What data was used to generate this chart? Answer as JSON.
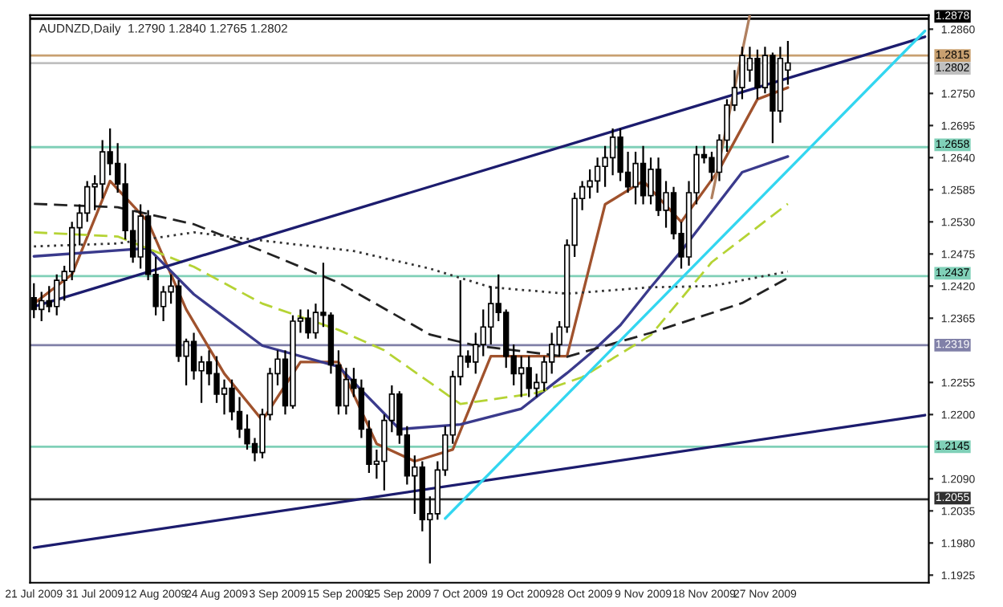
{
  "chart_data": {
    "type": "candlestick",
    "title": "AUDNZD,Daily  1.2790 1.2840 1.2765 1.2802",
    "categories": [
      "21 Jul 2009",
      null,
      null,
      null,
      null,
      null,
      null,
      null,
      "31 Jul 2009",
      null,
      null,
      null,
      null,
      null,
      null,
      null,
      "12 Aug 2009",
      null,
      null,
      null,
      null,
      null,
      null,
      null,
      "24 Aug 2009",
      null,
      null,
      null,
      null,
      null,
      null,
      null,
      "3 Sep 2009",
      null,
      null,
      null,
      null,
      null,
      null,
      null,
      "15 Sep 2009",
      null,
      null,
      null,
      null,
      null,
      null,
      null,
      "25 Sep 2009",
      null,
      null,
      null,
      null,
      null,
      null,
      null,
      "7 Oct 2009",
      null,
      null,
      null,
      null,
      null,
      null,
      null,
      "19 Oct 2009",
      null,
      null,
      null,
      null,
      null,
      null,
      null,
      "28 Oct 2009",
      null,
      null,
      null,
      null,
      null,
      null,
      null,
      "9 Nov 2009",
      null,
      null,
      null,
      null,
      null,
      null,
      null,
      "18 Nov 2009",
      null,
      null,
      null,
      null,
      null,
      null,
      null,
      "27 Nov 2009",
      null,
      null,
      null,
      null,
      null,
      null,
      null,
      null,
      null,
      null,
      null,
      null,
      null,
      null,
      null,
      null,
      null,
      null,
      null,
      null,
      null
    ],
    "ohlc": [
      [
        1.24,
        1.2425,
        1.2365,
        1.238
      ],
      [
        1.238,
        1.241,
        1.236,
        1.2395
      ],
      [
        1.2395,
        1.242,
        1.2375,
        1.2385
      ],
      [
        1.2385,
        1.244,
        1.237,
        1.243
      ],
      [
        1.243,
        1.2455,
        1.2395,
        1.2445
      ],
      [
        1.2445,
        1.253,
        1.243,
        1.252
      ],
      [
        1.252,
        1.256,
        1.249,
        1.2545
      ],
      [
        1.2545,
        1.26,
        1.253,
        1.259
      ],
      [
        1.259,
        1.261,
        1.255,
        1.2595
      ],
      [
        1.2595,
        1.267,
        1.257,
        1.265
      ],
      [
        1.265,
        1.269,
        1.261,
        1.263
      ],
      [
        1.263,
        1.2665,
        1.258,
        1.2595
      ],
      [
        1.2595,
        1.263,
        1.25,
        1.2515
      ],
      [
        1.2515,
        1.255,
        1.246,
        1.247
      ],
      [
        1.247,
        1.256,
        1.245,
        1.254
      ],
      [
        1.254,
        1.255,
        1.243,
        1.244
      ],
      [
        1.244,
        1.247,
        1.237,
        1.2385
      ],
      [
        1.2385,
        1.242,
        1.236,
        1.241
      ],
      [
        1.241,
        1.244,
        1.239,
        1.242
      ],
      [
        1.242,
        1.243,
        1.229,
        1.23
      ],
      [
        1.23,
        1.233,
        1.225,
        1.2325
      ],
      [
        1.2325,
        1.234,
        1.226,
        1.2275
      ],
      [
        1.2275,
        1.23,
        1.222,
        1.229
      ],
      [
        1.229,
        1.231,
        1.225,
        1.227
      ],
      [
        1.227,
        1.23,
        1.222,
        1.2235
      ],
      [
        1.2235,
        1.226,
        1.22,
        1.2245
      ],
      [
        1.2245,
        1.226,
        1.219,
        1.2205
      ],
      [
        1.2205,
        1.223,
        1.216,
        1.2175
      ],
      [
        1.2175,
        1.22,
        1.214,
        1.215
      ],
      [
        1.215,
        1.216,
        1.212,
        1.2135
      ],
      [
        1.2135,
        1.221,
        1.2125,
        1.22
      ],
      [
        1.22,
        1.228,
        1.219,
        1.227
      ],
      [
        1.227,
        1.231,
        1.225,
        1.2295
      ],
      [
        1.2295,
        1.231,
        1.22,
        1.2215
      ],
      [
        1.2215,
        1.237,
        1.221,
        1.236
      ],
      [
        1.236,
        1.238,
        1.234,
        1.2365
      ],
      [
        1.2365,
        1.238,
        1.233,
        1.234
      ],
      [
        1.234,
        1.239,
        1.233,
        1.2375
      ],
      [
        1.2375,
        1.246,
        1.235,
        1.237
      ],
      [
        1.237,
        1.2375,
        1.227,
        1.2285
      ],
      [
        1.2285,
        1.231,
        1.22,
        1.2215
      ],
      [
        1.2215,
        1.228,
        1.22,
        1.226
      ],
      [
        1.226,
        1.228,
        1.223,
        1.2245
      ],
      [
        1.2245,
        1.226,
        1.216,
        1.2175
      ],
      [
        1.2175,
        1.219,
        1.21,
        1.2115
      ],
      [
        1.2115,
        1.214,
        1.209,
        1.212
      ],
      [
        1.212,
        1.22,
        1.207,
        1.219
      ],
      [
        1.219,
        1.225,
        1.217,
        1.2235
      ],
      [
        1.2235,
        1.224,
        1.215,
        1.2165
      ],
      [
        1.2165,
        1.218,
        1.208,
        1.2095
      ],
      [
        1.2095,
        1.213,
        1.203,
        1.211
      ],
      [
        1.211,
        1.212,
        1.2,
        1.202
      ],
      [
        1.202,
        1.206,
        1.1945,
        1.203
      ],
      [
        1.203,
        1.212,
        1.202,
        1.2105
      ],
      [
        1.2105,
        1.218,
        1.2095,
        1.2165
      ],
      [
        1.2165,
        1.2275,
        1.215,
        1.2265
      ],
      [
        1.2265,
        1.243,
        1.225,
        1.23
      ],
      [
        1.23,
        1.231,
        1.228,
        1.229
      ],
      [
        1.229,
        1.234,
        1.227,
        1.232
      ],
      [
        1.232,
        1.238,
        1.23,
        1.235
      ],
      [
        1.235,
        1.242,
        1.232,
        1.239
      ],
      [
        1.239,
        1.244,
        1.236,
        1.2375
      ],
      [
        1.2375,
        1.238,
        1.228,
        1.23
      ],
      [
        1.23,
        1.232,
        1.225,
        1.227
      ],
      [
        1.227,
        1.23,
        1.223,
        1.228
      ],
      [
        1.228,
        1.23,
        1.223,
        1.2245
      ],
      [
        1.2245,
        1.227,
        1.223,
        1.2255
      ],
      [
        1.2255,
        1.23,
        1.224,
        1.229
      ],
      [
        1.229,
        1.234,
        1.227,
        1.232
      ],
      [
        1.232,
        1.236,
        1.23,
        1.235
      ],
      [
        1.235,
        1.25,
        1.234,
        1.249
      ],
      [
        1.249,
        1.258,
        1.247,
        1.257
      ],
      [
        1.257,
        1.26,
        1.255,
        1.259
      ],
      [
        1.259,
        1.262,
        1.257,
        1.26
      ],
      [
        1.26,
        1.264,
        1.258,
        1.2625
      ],
      [
        1.2625,
        1.266,
        1.259,
        1.264
      ],
      [
        1.264,
        1.269,
        1.261,
        1.2675
      ],
      [
        1.2675,
        1.269,
        1.26,
        1.2615
      ],
      [
        1.2615,
        1.265,
        1.258,
        1.259
      ],
      [
        1.259,
        1.265,
        1.256,
        1.263
      ],
      [
        1.263,
        1.266,
        1.256,
        1.2575
      ],
      [
        1.2575,
        1.264,
        1.256,
        1.262
      ],
      [
        1.262,
        1.264,
        1.254,
        1.255
      ],
      [
        1.255,
        1.26,
        1.252,
        1.258
      ],
      [
        1.258,
        1.259,
        1.25,
        1.251
      ],
      [
        1.251,
        1.253,
        1.245,
        1.247
      ],
      [
        1.247,
        1.26,
        1.2455,
        1.258
      ],
      [
        1.258,
        1.266,
        1.256,
        1.2645
      ],
      [
        1.2645,
        1.266,
        1.263,
        1.264
      ],
      [
        1.264,
        1.265,
        1.26,
        1.2615
      ],
      [
        1.2615,
        1.268,
        1.26,
        1.267
      ],
      [
        1.267,
        1.274,
        1.265,
        1.273
      ],
      [
        1.273,
        1.279,
        1.272,
        1.276
      ],
      [
        1.276,
        1.283,
        1.274,
        1.2815
      ],
      [
        1.279,
        1.283,
        1.277,
        1.281
      ],
      [
        1.281,
        1.2825,
        1.274,
        1.276
      ],
      [
        1.276,
        1.283,
        1.275,
        1.2815
      ],
      [
        1.2815,
        1.282,
        1.2665,
        1.272
      ],
      [
        1.272,
        1.283,
        1.27,
        1.281
      ],
      [
        1.279,
        1.284,
        1.2765,
        1.2802
      ],
      null,
      null,
      null,
      null,
      null,
      null,
      null,
      null,
      null,
      null,
      null,
      null,
      null,
      null,
      null,
      null,
      null,
      null
    ],
    "series": [
      {
        "type": "line",
        "color": "#a0522d",
        "values": [
          1.239,
          null,
          null,
          null,
          null,
          1.244,
          null,
          null,
          null,
          null,
          1.26,
          null,
          null,
          null,
          null,
          1.253,
          null,
          null,
          null,
          null,
          1.238,
          null,
          null,
          null,
          null,
          1.227,
          null,
          null,
          null,
          null,
          1.219,
          null,
          null,
          null,
          null,
          1.229,
          null,
          null,
          null,
          null,
          1.229,
          null,
          null,
          null,
          null,
          1.215,
          null,
          null,
          null,
          null,
          1.212,
          null,
          null,
          null,
          null,
          1.214,
          null,
          null,
          null,
          null,
          1.23,
          null,
          null,
          null,
          null,
          1.23,
          null,
          null,
          null,
          null,
          1.23,
          null,
          null,
          null,
          null,
          1.256,
          null,
          null,
          null,
          null,
          1.26,
          null,
          null,
          null,
          null,
          1.253,
          null,
          null,
          null,
          null,
          1.262,
          null,
          null,
          null,
          null,
          1.274,
          null,
          null,
          null,
          1.276,
          null,
          null,
          null,
          null,
          null,
          null,
          null,
          null,
          null,
          null,
          null,
          null,
          null,
          null,
          null,
          null,
          null,
          null
        ]
      },
      {
        "type": "line",
        "color": "#3a3a8c",
        "values": [
          1.2471,
          null,
          null,
          null,
          null,
          null,
          null,
          null,
          null,
          null,
          null,
          null,
          null,
          null,
          null,
          1.2485,
          null,
          null,
          null,
          null,
          null,
          1.2406,
          null,
          null,
          null,
          null,
          null,
          null,
          null,
          null,
          1.2318,
          null,
          null,
          null,
          null,
          null,
          null,
          null,
          null,
          null,
          1.2282,
          null,
          null,
          null,
          null,
          null,
          null,
          null,
          1.2175,
          null,
          null,
          null,
          null,
          null,
          null,
          null,
          1.2183,
          null,
          null,
          null,
          null,
          null,
          null,
          null,
          1.221,
          null,
          null,
          null,
          null,
          null,
          1.2271,
          null,
          null,
          1.2304,
          null,
          null,
          null,
          1.2353,
          null,
          null,
          null,
          1.2418,
          null,
          null,
          null,
          1.248,
          null,
          null,
          null,
          null,
          null,
          null,
          null,
          1.2615,
          null,
          null,
          null,
          null,
          null,
          1.2642,
          null,
          null,
          null,
          null,
          null,
          null,
          null,
          null,
          null,
          null,
          null,
          null,
          null,
          null,
          null,
          null,
          null,
          null
        ]
      },
      {
        "type": "line",
        "color": "#b5d334",
        "line_style": "dashed",
        "values": [
          1.2512,
          null,
          null,
          null,
          null,
          null,
          null,
          null,
          null,
          null,
          null,
          1.2505,
          null,
          null,
          null,
          null,
          null,
          null,
          null,
          null,
          null,
          1.2453,
          null,
          null,
          null,
          null,
          null,
          null,
          null,
          null,
          1.239,
          null,
          null,
          null,
          null,
          null,
          null,
          null,
          null,
          null,
          1.2345,
          null,
          null,
          null,
          null,
          null,
          1.231,
          null,
          null,
          null,
          null,
          null,
          null,
          null,
          null,
          null,
          1.2218,
          null,
          null,
          null,
          null,
          null,
          null,
          null,
          null,
          null,
          1.2237,
          null,
          null,
          null,
          null,
          null,
          1.2264,
          null,
          null,
          null,
          null,
          null,
          null,
          null,
          null,
          1.2336,
          null,
          null,
          null,
          null,
          null,
          null,
          null,
          1.2461,
          null,
          null,
          null,
          null,
          null,
          null,
          null,
          null,
          null,
          1.2561,
          null,
          null,
          null,
          null,
          null,
          null,
          null,
          null,
          null,
          null,
          null,
          null,
          null,
          null,
          null,
          null,
          null,
          null
        ]
      },
      {
        "type": "line",
        "color": "#222222",
        "line_style": "dashed",
        "values": [
          1.2561,
          null,
          null,
          null,
          null,
          null,
          null,
          null,
          null,
          null,
          null,
          1.2555,
          null,
          null,
          null,
          null,
          null,
          null,
          null,
          null,
          null,
          1.2526,
          null,
          null,
          null,
          null,
          null,
          null,
          null,
          null,
          1.248,
          null,
          null,
          null,
          null,
          null,
          null,
          null,
          null,
          null,
          1.2426,
          null,
          null,
          null,
          null,
          null,
          null,
          null,
          null,
          null,
          null,
          null,
          1.2337,
          null,
          null,
          null,
          null,
          null,
          1.2318,
          null,
          null,
          null,
          null,
          null,
          null,
          null,
          null,
          null,
          null,
          null,
          1.2299,
          null,
          null,
          null,
          null,
          null,
          null,
          null,
          null,
          null,
          null,
          1.234,
          null,
          null,
          null,
          null,
          null,
          null,
          null,
          null,
          null,
          null,
          null,
          1.2391,
          null,
          null,
          null,
          null,
          null,
          1.2434,
          null,
          null,
          null,
          null,
          null,
          null,
          null,
          null,
          null,
          null,
          null,
          null,
          null,
          null,
          null,
          null,
          null,
          null
        ]
      },
      {
        "type": "line",
        "color": "#333333",
        "line_style": "dotted",
        "values": [
          1.2488,
          null,
          null,
          null,
          null,
          null,
          null,
          null,
          null,
          null,
          null,
          1.2493,
          null,
          null,
          null,
          null,
          null,
          null,
          null,
          null,
          null,
          1.2512,
          null,
          null,
          null,
          null,
          null,
          null,
          null,
          null,
          1.2498,
          null,
          null,
          null,
          null,
          null,
          null,
          null,
          null,
          null,
          null,
          null,
          1.248,
          null,
          null,
          null,
          null,
          null,
          null,
          null,
          null,
          null,
          1.245,
          null,
          null,
          null,
          null,
          null,
          null,
          null,
          1.2418,
          null,
          null,
          null,
          null,
          null,
          null,
          null,
          null,
          null,
          1.2407,
          null,
          null,
          null,
          null,
          null,
          null,
          null,
          null,
          null,
          null,
          1.2418,
          null,
          null,
          null,
          null,
          null,
          null,
          null,
          1.242,
          null,
          null,
          null,
          null,
          null,
          null,
          null,
          null,
          null,
          1.2445,
          null,
          null,
          null,
          null,
          null,
          null,
          null,
          null,
          null,
          null,
          null,
          null,
          null,
          null,
          null,
          null,
          null,
          null
        ]
      },
      {
        "type": "line",
        "color": "#1c1c6e",
        "values": [
          1.2385,
          null,
          null,
          null,
          null,
          null,
          null,
          null,
          null,
          null,
          null,
          null,
          null,
          null,
          null,
          null,
          null,
          null,
          null,
          null,
          null,
          null,
          null,
          null,
          null,
          null,
          null,
          null,
          null,
          null,
          null,
          null,
          null,
          null,
          null,
          null,
          null,
          null,
          null,
          null,
          null,
          null,
          null,
          null,
          null,
          null,
          null,
          null,
          null,
          null,
          null,
          null,
          null,
          null,
          null,
          null,
          null,
          null,
          null,
          null,
          null,
          null,
          null,
          null,
          null,
          null,
          null,
          null,
          null,
          null,
          null,
          null,
          null,
          null,
          null,
          null,
          null,
          null,
          null,
          null,
          null,
          null,
          null,
          null,
          null,
          null,
          null,
          null,
          null,
          null,
          null,
          null,
          null,
          null,
          null,
          null,
          null,
          null,
          null,
          null,
          null,
          null,
          null,
          null,
          null,
          null,
          null,
          null,
          null,
          null,
          null,
          null,
          null,
          null,
          null,
          null,
          null,
          1.2847
        ]
      },
      {
        "type": "line",
        "color": "#1c1c6e",
        "values": [
          1.1972,
          null,
          null,
          null,
          null,
          null,
          null,
          null,
          null,
          null,
          null,
          null,
          null,
          null,
          null,
          null,
          null,
          null,
          null,
          null,
          null,
          null,
          null,
          null,
          null,
          null,
          null,
          null,
          null,
          null,
          null,
          null,
          null,
          null,
          null,
          null,
          null,
          null,
          null,
          null,
          null,
          null,
          null,
          null,
          null,
          null,
          null,
          null,
          null,
          null,
          null,
          null,
          null,
          null,
          null,
          null,
          null,
          null,
          null,
          null,
          null,
          null,
          null,
          null,
          null,
          null,
          null,
          null,
          null,
          null,
          null,
          null,
          null,
          null,
          null,
          null,
          null,
          null,
          null,
          null,
          null,
          null,
          null,
          null,
          null,
          null,
          null,
          null,
          null,
          null,
          null,
          null,
          null,
          null,
          null,
          null,
          null,
          null,
          null,
          null,
          null,
          null,
          null,
          null,
          null,
          null,
          null,
          null,
          null,
          null,
          null,
          null,
          null,
          null,
          null,
          null,
          null,
          1.2199
        ]
      },
      {
        "type": "line",
        "color": "#33d6f0",
        "values": [
          null,
          null,
          null,
          null,
          null,
          null,
          null,
          null,
          null,
          null,
          null,
          null,
          null,
          null,
          null,
          null,
          null,
          null,
          null,
          null,
          null,
          null,
          null,
          null,
          null,
          null,
          null,
          null,
          null,
          null,
          null,
          null,
          null,
          null,
          null,
          null,
          null,
          null,
          null,
          null,
          null,
          null,
          null,
          null,
          null,
          null,
          null,
          null,
          null,
          null,
          null,
          null,
          null,
          null,
          1.2022,
          null,
          null,
          null,
          null,
          null,
          null,
          null,
          null,
          null,
          null,
          null,
          null,
          null,
          null,
          null,
          null,
          null,
          null,
          null,
          null,
          null,
          null,
          null,
          null,
          null,
          null,
          null,
          null,
          null,
          null,
          null,
          null,
          null,
          null,
          null,
          null,
          null,
          null,
          null,
          null,
          null,
          null,
          null,
          null,
          null,
          null,
          null,
          null,
          null,
          null,
          null,
          null,
          null,
          null,
          null,
          null,
          null,
          null,
          null,
          null,
          null,
          null,
          1.2857
        ]
      },
      {
        "type": "line",
        "color": "#b08060",
        "values": [
          null,
          null,
          null,
          null,
          null,
          null,
          null,
          null,
          null,
          null,
          null,
          null,
          null,
          null,
          null,
          null,
          null,
          null,
          null,
          null,
          null,
          null,
          null,
          null,
          null,
          null,
          null,
          null,
          null,
          null,
          null,
          null,
          null,
          null,
          null,
          null,
          null,
          null,
          null,
          null,
          null,
          null,
          null,
          null,
          null,
          null,
          null,
          null,
          null,
          null,
          null,
          null,
          null,
          null,
          null,
          null,
          null,
          null,
          null,
          null,
          null,
          null,
          null,
          null,
          null,
          null,
          null,
          null,
          null,
          null,
          null,
          null,
          null,
          null,
          null,
          null,
          null,
          null,
          null,
          null,
          null,
          null,
          null,
          null,
          null,
          null,
          null,
          null,
          null,
          1.2571,
          null,
          null,
          null,
          null,
          1.2884,
          null,
          null,
          null,
          null,
          null,
          null,
          null,
          null,
          null,
          null,
          null,
          null,
          null,
          null,
          null,
          null,
          null,
          null,
          null,
          null,
          null,
          null,
          null
        ]
      }
    ],
    "ref_lines": [
      {
        "axis": "y",
        "value": 1.2878,
        "label": "1.2878",
        "color": "#000000"
      },
      {
        "axis": "y",
        "value": 1.2815,
        "label": "1.2815",
        "color": "#c8a070"
      },
      {
        "axis": "y",
        "value": 1.2802,
        "label": "1.2802",
        "color": "#c0c0c0"
      },
      {
        "axis": "y",
        "value": 1.2658,
        "label": "1.2658",
        "color": "#80d0b8"
      },
      {
        "axis": "y",
        "value": 1.2437,
        "label": "1.2437",
        "color": "#80d0b8"
      },
      {
        "axis": "y",
        "value": 1.2319,
        "label": "1.2319",
        "color": "#8080a8"
      },
      {
        "axis": "y",
        "value": 1.2145,
        "label": "1.2145",
        "color": "#80d0b8"
      },
      {
        "axis": "y",
        "value": 1.2055,
        "label": "1.2055",
        "color": "#303030"
      }
    ],
    "ylim": [
      1.1912,
      1.2884
    ],
    "yticks": [
      {
        "value": 1.286,
        "label": "1.2860"
      },
      {
        "value": 1.275,
        "label": "1.2750"
      },
      1.2695,
      {
        "value": 1.264,
        "label": "1.2640"
      },
      1.2585,
      {
        "value": 1.253,
        "label": "1.2530"
      },
      1.2475,
      {
        "value": 1.242,
        "label": "1.2420"
      },
      1.2365,
      1.2255,
      {
        "value": 1.22,
        "label": "1.2200"
      },
      {
        "value": 1.209,
        "label": "1.2090"
      },
      1.2035,
      {
        "value": 1.198,
        "label": "1.1980"
      },
      1.1925
    ],
    "grid": false
  }
}
